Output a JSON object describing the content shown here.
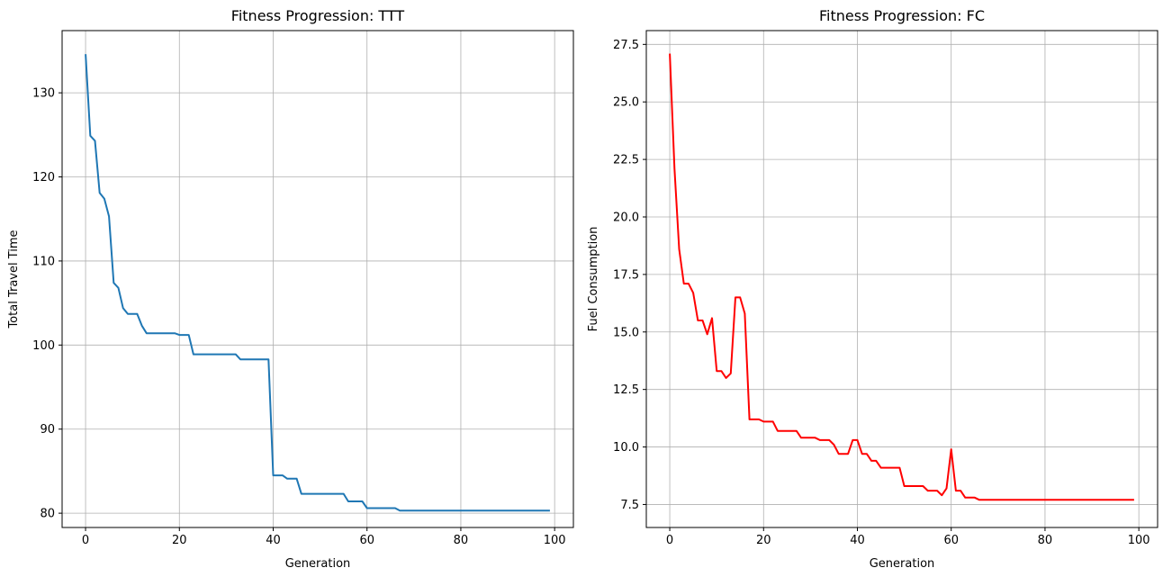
{
  "chart_data": [
    {
      "type": "line",
      "title": "Fitness Progression: TTT",
      "xlabel": "Generation",
      "ylabel": "Total Travel Time",
      "xlim": [
        -5,
        104
      ],
      "ylim": [
        78.3,
        137.4
      ],
      "xticks": [
        0,
        20,
        40,
        60,
        80,
        100
      ],
      "yticks": [
        80,
        90,
        100,
        110,
        120,
        130
      ],
      "ytick_labels": [
        "80",
        "90",
        "100",
        "110",
        "120",
        "130"
      ],
      "grid": true,
      "color": "#1f77b4",
      "x": [
        0,
        1,
        2,
        3,
        4,
        5,
        6,
        7,
        8,
        9,
        10,
        11,
        12,
        13,
        14,
        15,
        16,
        17,
        18,
        19,
        20,
        21,
        22,
        23,
        24,
        25,
        26,
        27,
        28,
        29,
        30,
        31,
        32,
        33,
        34,
        35,
        36,
        37,
        38,
        39,
        40,
        41,
        42,
        43,
        44,
        45,
        46,
        47,
        48,
        49,
        50,
        51,
        52,
        53,
        54,
        55,
        56,
        57,
        58,
        59,
        60,
        61,
        62,
        63,
        64,
        65,
        66,
        67,
        68,
        69,
        70,
        71,
        72,
        73,
        74,
        75,
        76,
        77,
        78,
        79,
        80,
        81,
        82,
        83,
        84,
        85,
        86,
        87,
        88,
        89,
        90,
        91,
        92,
        93,
        94,
        95,
        96,
        97,
        98,
        99
      ],
      "y": [
        134.6,
        124.9,
        124.3,
        118.1,
        117.4,
        115.3,
        107.4,
        106.8,
        104.4,
        103.7,
        103.7,
        103.7,
        102.3,
        101.4,
        101.4,
        101.4,
        101.4,
        101.4,
        101.4,
        101.4,
        101.2,
        101.2,
        101.2,
        98.9,
        98.9,
        98.9,
        98.9,
        98.9,
        98.9,
        98.9,
        98.9,
        98.9,
        98.9,
        98.3,
        98.3,
        98.3,
        98.3,
        98.3,
        98.3,
        98.3,
        84.5,
        84.5,
        84.5,
        84.1,
        84.1,
        84.1,
        82.3,
        82.3,
        82.3,
        82.3,
        82.3,
        82.3,
        82.3,
        82.3,
        82.3,
        82.3,
        81.4,
        81.4,
        81.4,
        81.4,
        80.6,
        80.6,
        80.6,
        80.6,
        80.6,
        80.6,
        80.6,
        80.3,
        80.3,
        80.3,
        80.3,
        80.3,
        80.3,
        80.3,
        80.3,
        80.3,
        80.3,
        80.3,
        80.3,
        80.3,
        80.3,
        80.3,
        80.3,
        80.3,
        80.3,
        80.3,
        80.3,
        80.3,
        80.3,
        80.3,
        80.3,
        80.3,
        80.3,
        80.3,
        80.3,
        80.3,
        80.3,
        80.3,
        80.3,
        80.3
      ]
    },
    {
      "type": "line",
      "title": "Fitness Progression: FC",
      "xlabel": "Generation",
      "ylabel": "Fuel Consumption",
      "xlim": [
        -5,
        104
      ],
      "ylim": [
        6.5,
        28.1
      ],
      "xticks": [
        0,
        20,
        40,
        60,
        80,
        100
      ],
      "yticks": [
        7.5,
        10.0,
        12.5,
        15.0,
        17.5,
        20.0,
        22.5,
        25.0,
        27.5
      ],
      "ytick_labels": [
        "7.5",
        "10.0",
        "12.5",
        "15.0",
        "17.5",
        "20.0",
        "22.5",
        "25.0",
        "27.5"
      ],
      "grid": true,
      "color": "#ff0000",
      "x": [
        0,
        1,
        2,
        3,
        4,
        5,
        6,
        7,
        8,
        9,
        10,
        11,
        12,
        13,
        14,
        15,
        16,
        17,
        18,
        19,
        20,
        21,
        22,
        23,
        24,
        25,
        26,
        27,
        28,
        29,
        30,
        31,
        32,
        33,
        34,
        35,
        36,
        37,
        38,
        39,
        40,
        41,
        42,
        43,
        44,
        45,
        46,
        47,
        48,
        49,
        50,
        51,
        52,
        53,
        54,
        55,
        56,
        57,
        58,
        59,
        60,
        61,
        62,
        63,
        64,
        65,
        66,
        67,
        68,
        69,
        70,
        71,
        72,
        73,
        74,
        75,
        76,
        77,
        78,
        79,
        80,
        81,
        82,
        83,
        84,
        85,
        86,
        87,
        88,
        89,
        90,
        91,
        92,
        93,
        94,
        95,
        96,
        97,
        98,
        99
      ],
      "y": [
        27.1,
        22.1,
        18.6,
        17.1,
        17.1,
        16.7,
        15.5,
        15.5,
        14.9,
        15.6,
        13.3,
        13.3,
        13.0,
        13.2,
        16.5,
        16.5,
        15.8,
        11.2,
        11.2,
        11.2,
        11.1,
        11.1,
        11.1,
        10.7,
        10.7,
        10.7,
        10.7,
        10.7,
        10.4,
        10.4,
        10.4,
        10.4,
        10.3,
        10.3,
        10.3,
        10.1,
        9.7,
        9.7,
        9.7,
        10.3,
        10.3,
        9.7,
        9.7,
        9.4,
        9.4,
        9.1,
        9.1,
        9.1,
        9.1,
        9.1,
        8.3,
        8.3,
        8.3,
        8.3,
        8.3,
        8.1,
        8.1,
        8.1,
        7.9,
        8.2,
        9.9,
        8.1,
        8.1,
        7.8,
        7.8,
        7.8,
        7.7,
        7.7,
        7.7,
        7.7,
        7.7,
        7.7,
        7.7,
        7.7,
        7.7,
        7.7,
        7.7,
        7.7,
        7.7,
        7.7,
        7.7,
        7.7,
        7.7,
        7.7,
        7.7,
        7.7,
        7.7,
        7.7,
        7.7,
        7.7,
        7.7,
        7.7,
        7.7,
        7.7,
        7.7,
        7.7,
        7.7,
        7.7,
        7.7,
        7.7
      ]
    }
  ]
}
